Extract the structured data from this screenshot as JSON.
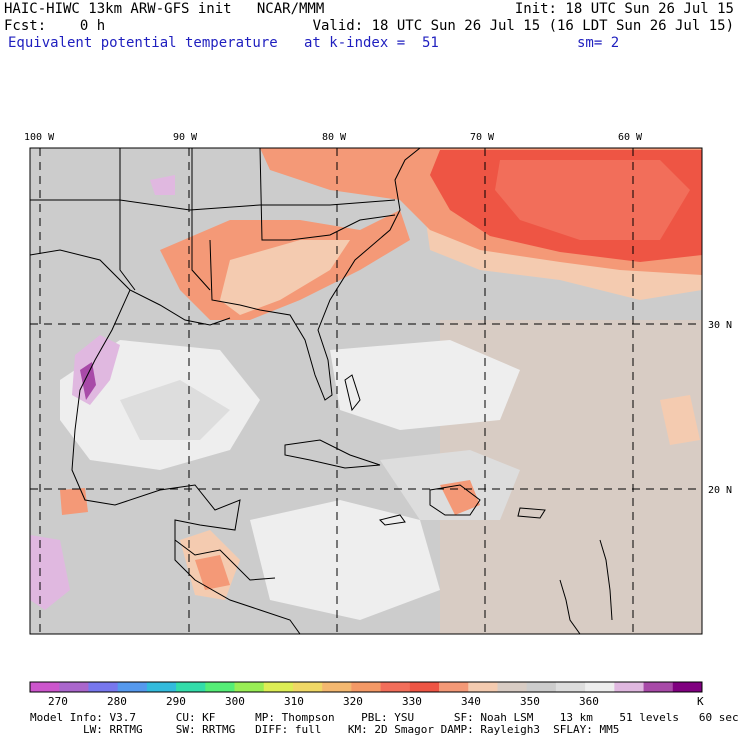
{
  "header": {
    "title": "HAIC-HIWC 13km ARW-GFS init   NCAR/MMM",
    "init": "Init: 18 UTC Sun 26 Jul 15",
    "fcst": "Fcst:    0 h",
    "valid": "Valid: 18 UTC Sun 26 Jul 15 (16 LDT Sun 26 Jul 15)",
    "field": "Equivalent potential temperature",
    "level": "at k-index =  51",
    "smooth": "sm= 2"
  },
  "map": {
    "lon_labels": [
      "100 W",
      "90 W",
      "80 W",
      "70 W",
      "60 W"
    ],
    "lat_labels": [
      "30 N",
      "20 N"
    ]
  },
  "colorbar": {
    "colors": [
      "#cc55cc",
      "#aa66cc",
      "#7777ee",
      "#5599ee",
      "#33bbdd",
      "#33ddaa",
      "#55ee77",
      "#99ee55",
      "#ddee55",
      "#f0d866",
      "#f4b870",
      "#f49966",
      "#f26e5a",
      "#ee5544",
      "#f49977",
      "#f4cbb0",
      "#d8ccc4",
      "#cccccc",
      "#dddddd",
      "#eeeeee",
      "#e0b8e0",
      "#a84aa8",
      "#800080"
    ],
    "tick_labels": [
      "270",
      "280",
      "290",
      "300",
      "310",
      "320",
      "330",
      "340",
      "350",
      "360",
      "K"
    ]
  },
  "footer": {
    "line1": "Model Info: V3.7      CU: KF      MP: Thompson    PBL: YSU      SF: Noah LSM    13 km    51 levels   60 sec",
    "line2": "        LW: RRTMG     SW: RRTMG   DIFF: full    KM: 2D Smagor DAMP: Rayleigh3  SFLAY: MM5"
  }
}
